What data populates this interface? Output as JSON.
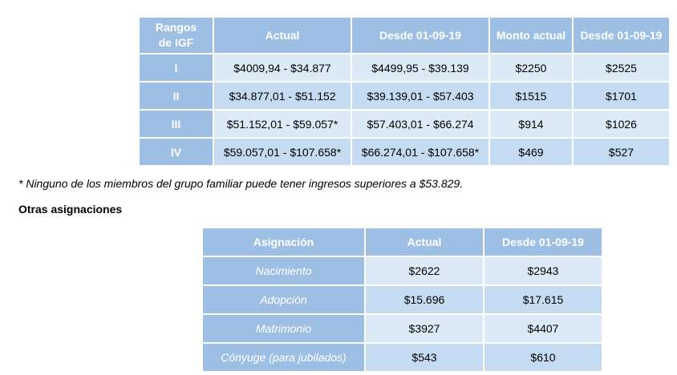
{
  "igf_table": {
    "headers": [
      "Rangos de IGF",
      "Actual",
      "Desde 01-09-19",
      "Monto actual",
      "Desde 01-09-19"
    ],
    "header_rango_line1": "Rangos",
    "header_rango_line2": "de IGF",
    "rows": [
      {
        "rango": "I",
        "actual": "$4009,94 - $34.877",
        "desde": "$4499,95 - $39.139",
        "monto_actual": "$2250",
        "monto_desde": "$2525"
      },
      {
        "rango": "II",
        "actual": "$34.877,01 - $51.152",
        "desde": "$39.139,01 - $57.403",
        "monto_actual": "$1515",
        "monto_desde": "$1701"
      },
      {
        "rango": "III",
        "actual": "$51.152,01 - $59.057*",
        "desde": "$57.403,01 - $66.274",
        "monto_actual": "$914",
        "monto_desde": "$1026"
      },
      {
        "rango": "IV",
        "actual": "$59.057,01 - $107.658*",
        "desde": "$66.274,01 - $107.658*",
        "monto_actual": "$469",
        "monto_desde": "$527"
      }
    ]
  },
  "footnote": "* Ninguno de los miembros del grupo familiar puede tener ingresos superiores a $53.829.",
  "otras_heading": "Otras asignaciones",
  "asig_table": {
    "headers": [
      "Asignación",
      "Actual",
      "Desde 01-09-19"
    ],
    "rows": [
      {
        "asignacion": "Nacimiento",
        "actual": "$2622",
        "desde": "$2943"
      },
      {
        "asignacion": "Adopción",
        "actual": "$15.696",
        "desde": "$17.615"
      },
      {
        "asignacion": "Matrimonio",
        "actual": "$3927",
        "desde": "$4407"
      },
      {
        "asignacion": "Cónyuge (para jubilados)",
        "actual": "$543",
        "desde": "$610"
      }
    ]
  },
  "colors": {
    "header_blue": "#9dbfe3",
    "cell_light": "#dce9f7",
    "cell_mid": "#c4dbf1"
  }
}
